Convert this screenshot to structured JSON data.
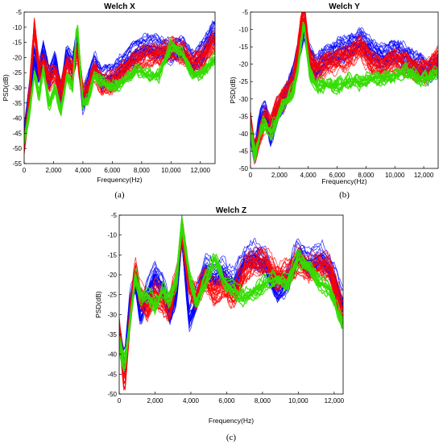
{
  "chart_data": [
    {
      "id": "x",
      "type": "line",
      "title": "Welch X",
      "xlabel": "Frequency(Hz)",
      "ylabel": "PSD(dB)",
      "panel_label": "(a)",
      "xlim": [
        0,
        13000
      ],
      "ylim": [
        -55,
        -5
      ],
      "xticks": [
        0,
        2000,
        4000,
        6000,
        8000,
        10000,
        12000
      ],
      "xtick_labels": [
        "0",
        "2,000",
        "4,000",
        "6,000",
        "8,000",
        "10,000",
        "12,000"
      ],
      "yticks": [
        -55,
        -50,
        -45,
        -40,
        -35,
        -30,
        -25,
        -20,
        -15,
        -10,
        -5
      ],
      "ytick_labels": [
        "-55",
        "-50",
        "-45",
        "-40",
        "-35",
        "-30",
        "-25",
        "-20",
        "-15",
        "-10",
        "-5"
      ],
      "grid": false,
      "legend": "none",
      "series": [
        {
          "color": "#0000ff",
          "x": [
            0,
            300,
            700,
            1000,
            1300,
            1700,
            2100,
            2500,
            2900,
            3300,
            3600,
            4000,
            4400,
            4800,
            5300,
            6000,
            6800,
            7600,
            8400,
            9200,
            10000,
            10800,
            11500,
            12200,
            12800
          ],
          "y": [
            -47,
            -34,
            -20,
            -26,
            -18,
            -27,
            -21,
            -33,
            -19,
            -23,
            -14,
            -35,
            -28,
            -22,
            -27,
            -26,
            -22,
            -18,
            -16,
            -17,
            -18,
            -17,
            -22,
            -18,
            -12
          ]
        },
        {
          "color": "#ff0000",
          "x": [
            0,
            300,
            700,
            1000,
            1300,
            1700,
            2100,
            2500,
            2900,
            3300,
            3600,
            4000,
            4400,
            4800,
            5300,
            6000,
            6800,
            7600,
            8400,
            9200,
            10000,
            10800,
            11500,
            12200,
            12800
          ],
          "y": [
            -49,
            -36,
            -9,
            -24,
            -22,
            -27,
            -25,
            -31,
            -22,
            -25,
            -17,
            -32,
            -30,
            -24,
            -29,
            -28,
            -24,
            -21,
            -19,
            -19,
            -17,
            -18,
            -22,
            -20,
            -15
          ]
        },
        {
          "color": "#33dd00",
          "x": [
            0,
            300,
            700,
            1000,
            1300,
            1700,
            2100,
            2500,
            2900,
            3300,
            3600,
            4000,
            4400,
            4800,
            5300,
            6000,
            6800,
            7600,
            8400,
            9200,
            10000,
            10800,
            11500,
            12200,
            12800
          ],
          "y": [
            -48,
            -40,
            -25,
            -33,
            -24,
            -36,
            -30,
            -38,
            -26,
            -30,
            -8,
            -36,
            -33,
            -26,
            -28,
            -30,
            -28,
            -24,
            -26,
            -26,
            -16,
            -19,
            -26,
            -25,
            -21
          ]
        }
      ]
    },
    {
      "id": "y",
      "type": "line",
      "title": "Welch Y",
      "xlabel": "Frequency(Hz)",
      "ylabel": "PSD(dB)",
      "panel_label": "(b)",
      "xlim": [
        0,
        13000
      ],
      "ylim": [
        -50,
        -5
      ],
      "xticks": [
        0,
        2000,
        4000,
        6000,
        8000,
        10000,
        12000
      ],
      "xtick_labels": [
        "0",
        "2,000",
        "4,000",
        "6,000",
        "8,000",
        "10,000",
        "12,000"
      ],
      "yticks": [
        -50,
        -45,
        -40,
        -35,
        -30,
        -25,
        -20,
        -15,
        -10,
        -5
      ],
      "ytick_labels": [
        "-50",
        "-45",
        "-40",
        "-35",
        "-30",
        "-25",
        "-20",
        "-15",
        "-10",
        "-5"
      ],
      "grid": false,
      "legend": "none",
      "series": [
        {
          "color": "#0000ff",
          "x": [
            0,
            300,
            700,
            1000,
            1400,
            1800,
            2200,
            2600,
            3000,
            3400,
            3700,
            4100,
            4600,
            5200,
            6000,
            6800,
            7600,
            8400,
            9200,
            10000,
            10800,
            11600,
            12300,
            13000
          ],
          "y": [
            -40,
            -45,
            -36,
            -33,
            -40,
            -34,
            -31,
            -27,
            -23,
            -15,
            -9,
            -17,
            -21,
            -18,
            -16,
            -15,
            -13,
            -16,
            -18,
            -16,
            -18,
            -20,
            -22,
            -20
          ]
        },
        {
          "color": "#ff0000",
          "x": [
            0,
            300,
            700,
            1000,
            1400,
            1800,
            2200,
            2600,
            3000,
            3400,
            3700,
            4100,
            4600,
            5200,
            6000,
            6800,
            7600,
            8400,
            9200,
            10000,
            10800,
            11600,
            12300,
            13000
          ],
          "y": [
            -36,
            -46,
            -40,
            -36,
            -38,
            -33,
            -30,
            -28,
            -25,
            -12,
            -4,
            -19,
            -22,
            -20,
            -19,
            -18,
            -15,
            -20,
            -21,
            -19,
            -20,
            -22,
            -22,
            -18
          ]
        },
        {
          "color": "#33dd00",
          "x": [
            0,
            300,
            700,
            1000,
            1400,
            1800,
            2200,
            2600,
            3000,
            3400,
            3700,
            4100,
            4600,
            5200,
            6000,
            6800,
            7600,
            8400,
            9200,
            10000,
            10800,
            11600,
            12300,
            13000
          ],
          "y": [
            -38,
            -47,
            -39,
            -37,
            -40,
            -36,
            -32,
            -30,
            -27,
            -18,
            -8,
            -23,
            -26,
            -26,
            -26,
            -25,
            -25,
            -24,
            -24,
            -23,
            -22,
            -24,
            -24,
            -22
          ]
        }
      ]
    },
    {
      "id": "z",
      "type": "line",
      "title": "Welch Z",
      "xlabel": "Frequency(Hz)",
      "ylabel": "PSD(dB)",
      "panel_label": "(c)",
      "xlim": [
        0,
        12500
      ],
      "ylim": [
        -50,
        -5
      ],
      "xticks": [
        0,
        2000,
        4000,
        6000,
        8000,
        10000,
        12000
      ],
      "xtick_labels": [
        "0",
        "2,000",
        "4,000",
        "6,000",
        "8,000",
        "10,000",
        "12,000"
      ],
      "yticks": [
        -50,
        -45,
        -40,
        -35,
        -30,
        -25,
        -20,
        -15,
        -10,
        -5
      ],
      "ytick_labels": [
        "-50",
        "-45",
        "-40",
        "-35",
        "-30",
        "-25",
        "-20",
        "-15",
        "-10",
        "-5"
      ],
      "grid": false,
      "legend": "none",
      "series": [
        {
          "color": "#0000ff",
          "x": [
            0,
            300,
            600,
            900,
            1200,
            1600,
            2000,
            2400,
            2800,
            3200,
            3500,
            3900,
            4300,
            4800,
            5300,
            5800,
            6400,
            7000,
            7600,
            8200,
            8800,
            9400,
            10000,
            10600,
            11200,
            11800,
            12400
          ],
          "y": [
            -35,
            -43,
            -27,
            -21,
            -30,
            -24,
            -20,
            -22,
            -30,
            -24,
            -9,
            -31,
            -26,
            -18,
            -20,
            -19,
            -22,
            -16,
            -15,
            -17,
            -24,
            -21,
            -14,
            -17,
            -15,
            -18,
            -26
          ]
        },
        {
          "color": "#ff0000",
          "x": [
            0,
            300,
            600,
            900,
            1200,
            1600,
            2000,
            2400,
            2800,
            3200,
            3500,
            3900,
            4300,
            4800,
            5300,
            5800,
            6400,
            7000,
            7600,
            8200,
            8800,
            9400,
            10000,
            10600,
            11200,
            11800,
            12400
          ],
          "y": [
            -33,
            -47,
            -30,
            -18,
            -25,
            -28,
            -24,
            -26,
            -28,
            -20,
            -8,
            -22,
            -25,
            -20,
            -24,
            -22,
            -25,
            -18,
            -16,
            -16,
            -20,
            -19,
            -16,
            -18,
            -17,
            -18,
            -28
          ]
        },
        {
          "color": "#33dd00",
          "x": [
            0,
            300,
            600,
            900,
            1200,
            1600,
            2000,
            2400,
            2800,
            3200,
            3500,
            3900,
            4300,
            4800,
            5300,
            5800,
            6400,
            7000,
            7600,
            8200,
            8800,
            9400,
            10000,
            10600,
            11200,
            11800,
            12400
          ],
          "y": [
            -37,
            -43,
            -32,
            -20,
            -26,
            -25,
            -28,
            -24,
            -26,
            -22,
            -7,
            -20,
            -27,
            -22,
            -16,
            -21,
            -24,
            -26,
            -24,
            -22,
            -21,
            -22,
            -16,
            -18,
            -22,
            -24,
            -32
          ]
        }
      ]
    }
  ]
}
